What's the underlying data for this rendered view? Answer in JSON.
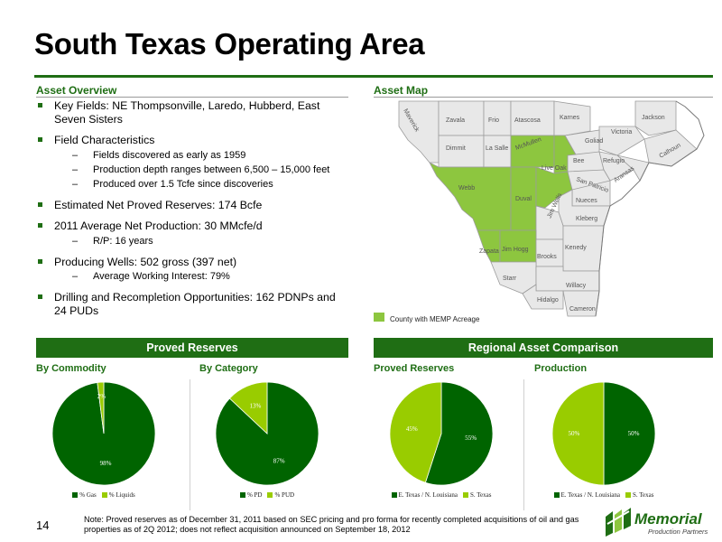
{
  "page": {
    "title": "South Texas Operating Area",
    "page_number": "14",
    "note": "Note: Proved reserves as of December 31, 2011 based on SEC pricing and pro forma for recently completed acquisitions of oil and gas properties as of 2Q 2012; does not reflect acquisition announced on September 18, 2012"
  },
  "asset_overview": {
    "heading": "Asset Overview",
    "bullets": [
      {
        "text": "Key Fields: NE Thompsonville, Laredo, Hubberd, East Seven Sisters",
        "subs": []
      },
      {
        "text": "Field Characteristics",
        "subs": [
          "Fields discovered as early as 1959",
          "Production depth ranges between 6,500 – 15,000 feet",
          "Produced over 1.5 Tcfe since discoveries"
        ]
      },
      {
        "text": "Estimated Net Proved Reserves: 174 Bcfe",
        "subs": []
      },
      {
        "text": "2011 Average Net Production: 30 MMcfe/d",
        "subs": [
          "R/P: 16 years"
        ]
      },
      {
        "text": "Producing Wells: 502 gross (397 net)",
        "subs": [
          "Average Working Interest: 79%"
        ]
      },
      {
        "text": "Drilling and Recompletion Opportunities: 162 PDNPs and  24 PUDs",
        "subs": []
      }
    ]
  },
  "asset_map": {
    "heading": "Asset Map",
    "legend": "County with MEMP Acreage",
    "counties": {
      "maverick": "Maverick",
      "zavala": "Zavala",
      "frio": "Frio",
      "atascosa": "Atascosa",
      "karnes": "Karnes",
      "jackson": "Jackson",
      "dimmit": "Dimmit",
      "lasalle": "La Salle",
      "mcmullen": "McMullen",
      "goliad": "Goliad",
      "victoria": "Victoria",
      "calhoun": "Calhoun",
      "liveoak": "Live Oak",
      "bee": "Bee",
      "refugio": "Refugio",
      "aransas": "Aransas",
      "webb": "Webb",
      "sanpatricio": "San Patricio",
      "jimwells": "Jim Wells",
      "duval": "Duval",
      "nueces": "Nueces",
      "kleberg": "Kleberg",
      "zapata": "Zapata",
      "jimhogg": "Jim Hogg",
      "brooks": "Brooks",
      "kenedy": "Kenedy",
      "starr": "Starr",
      "willacy": "Willacy",
      "hidalgo": "Hidalgo",
      "cameron": "Cameron"
    }
  },
  "proved_reserves": {
    "band": "Proved Reserves",
    "by_commodity": {
      "heading": "By Commodity"
    },
    "by_category": {
      "heading": "By Category"
    }
  },
  "regional": {
    "band": "Regional Asset Comparison",
    "proved_reserves": {
      "heading": "Proved Reserves"
    },
    "production": {
      "heading": "Production"
    }
  },
  "colors": {
    "dark_green": "#006400",
    "light_green": "#99cc00",
    "brand_green": "#1f6e14",
    "map_green": "#8dc63f"
  },
  "chart_data": [
    {
      "type": "pie",
      "labels": [
        "% Gas",
        "% Liquids"
      ],
      "values": [
        98,
        2
      ],
      "data_labels": [
        "98%",
        "2%"
      ]
    },
    {
      "type": "pie",
      "labels": [
        "% PD",
        "% PUD"
      ],
      "values": [
        87,
        13
      ],
      "data_labels": [
        "87%",
        "13%"
      ]
    },
    {
      "type": "pie",
      "labels": [
        "E. Texas / N. Louisiana",
        "S. Texas"
      ],
      "values": [
        55,
        45
      ],
      "data_labels": [
        "55%",
        "45%"
      ]
    },
    {
      "type": "pie",
      "labels": [
        "E. Texas / N. Louisiana",
        "S. Texas"
      ],
      "values": [
        50,
        50
      ],
      "data_labels": [
        "50%",
        "50%"
      ]
    }
  ],
  "logo": {
    "name": "Memorial",
    "tagline": "Production Partners"
  }
}
